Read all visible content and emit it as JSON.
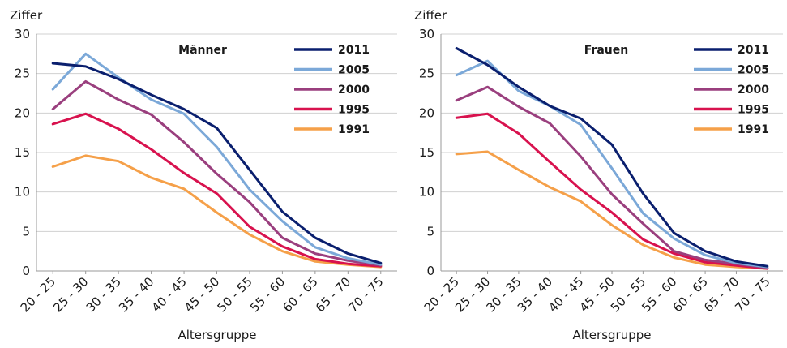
{
  "chart_data": [
    {
      "type": "line",
      "title": "Männer",
      "ylabel": "Ziffer",
      "xlabel": "Altersgruppe",
      "ylim": [
        0,
        30
      ],
      "yticks": [
        0,
        5,
        10,
        15,
        20,
        25,
        30
      ],
      "grid": true,
      "legend_position": "top-right",
      "categories": [
        "20 - 25",
        "25 - 30",
        "30 - 35",
        "35 - 40",
        "40 - 45",
        "45 - 50",
        "50 - 55",
        "55 - 60",
        "60 - 65",
        "65 - 70",
        "70 - 75"
      ],
      "series": [
        {
          "name": "2011",
          "color": "#0a1f6e",
          "values": [
            26.3,
            25.9,
            24.3,
            22.3,
            20.5,
            18.1,
            12.8,
            7.5,
            4.2,
            2.2,
            1.0
          ]
        },
        {
          "name": "2005",
          "color": "#7ba8d8",
          "values": [
            23.0,
            27.5,
            24.5,
            21.7,
            19.9,
            15.7,
            10.3,
            6.3,
            3.0,
            1.6,
            0.8
          ]
        },
        {
          "name": "2000",
          "color": "#9a3f7e",
          "values": [
            20.5,
            24.0,
            21.7,
            19.8,
            16.3,
            12.3,
            8.7,
            4.2,
            2.2,
            1.3,
            0.7
          ]
        },
        {
          "name": "1995",
          "color": "#d8124e",
          "values": [
            18.6,
            19.9,
            18.0,
            15.4,
            12.4,
            9.8,
            5.6,
            3.1,
            1.5,
            0.9,
            0.6
          ]
        },
        {
          "name": "1991",
          "color": "#f5a049",
          "values": [
            13.2,
            14.6,
            13.9,
            11.8,
            10.4,
            7.4,
            4.6,
            2.5,
            1.2,
            0.8,
            0.5
          ]
        }
      ]
    },
    {
      "type": "line",
      "title": "Frauen",
      "ylabel": "Ziffer",
      "xlabel": "Altersgruppe",
      "ylim": [
        0,
        30
      ],
      "yticks": [
        0,
        5,
        10,
        15,
        20,
        25,
        30
      ],
      "grid": true,
      "legend_position": "top-right",
      "categories": [
        "20 - 25",
        "25 - 30",
        "30 - 35",
        "35 - 40",
        "40 - 45",
        "45 - 50",
        "50 - 55",
        "55 - 60",
        "60 - 65",
        "65 - 70",
        "70 - 75"
      ],
      "series": [
        {
          "name": "2011",
          "color": "#0a1f6e",
          "values": [
            28.2,
            26.1,
            23.3,
            20.9,
            19.3,
            16.0,
            9.8,
            4.8,
            2.5,
            1.2,
            0.6
          ]
        },
        {
          "name": "2005",
          "color": "#7ba8d8",
          "values": [
            24.8,
            26.6,
            22.8,
            20.9,
            18.5,
            13.0,
            7.3,
            4.1,
            2.0,
            1.0,
            0.5
          ]
        },
        {
          "name": "2000",
          "color": "#9a3f7e",
          "values": [
            21.6,
            23.3,
            20.8,
            18.7,
            14.5,
            9.7,
            6.0,
            2.5,
            1.4,
            0.9,
            0.4
          ]
        },
        {
          "name": "1995",
          "color": "#d8124e",
          "values": [
            19.4,
            19.9,
            17.4,
            13.8,
            10.3,
            7.4,
            4.0,
            2.2,
            1.1,
            0.7,
            0.3
          ]
        },
        {
          "name": "1991",
          "color": "#f5a049",
          "values": [
            14.8,
            15.1,
            12.8,
            10.6,
            8.8,
            5.8,
            3.3,
            1.7,
            0.8,
            0.5,
            0.3
          ]
        }
      ]
    }
  ]
}
